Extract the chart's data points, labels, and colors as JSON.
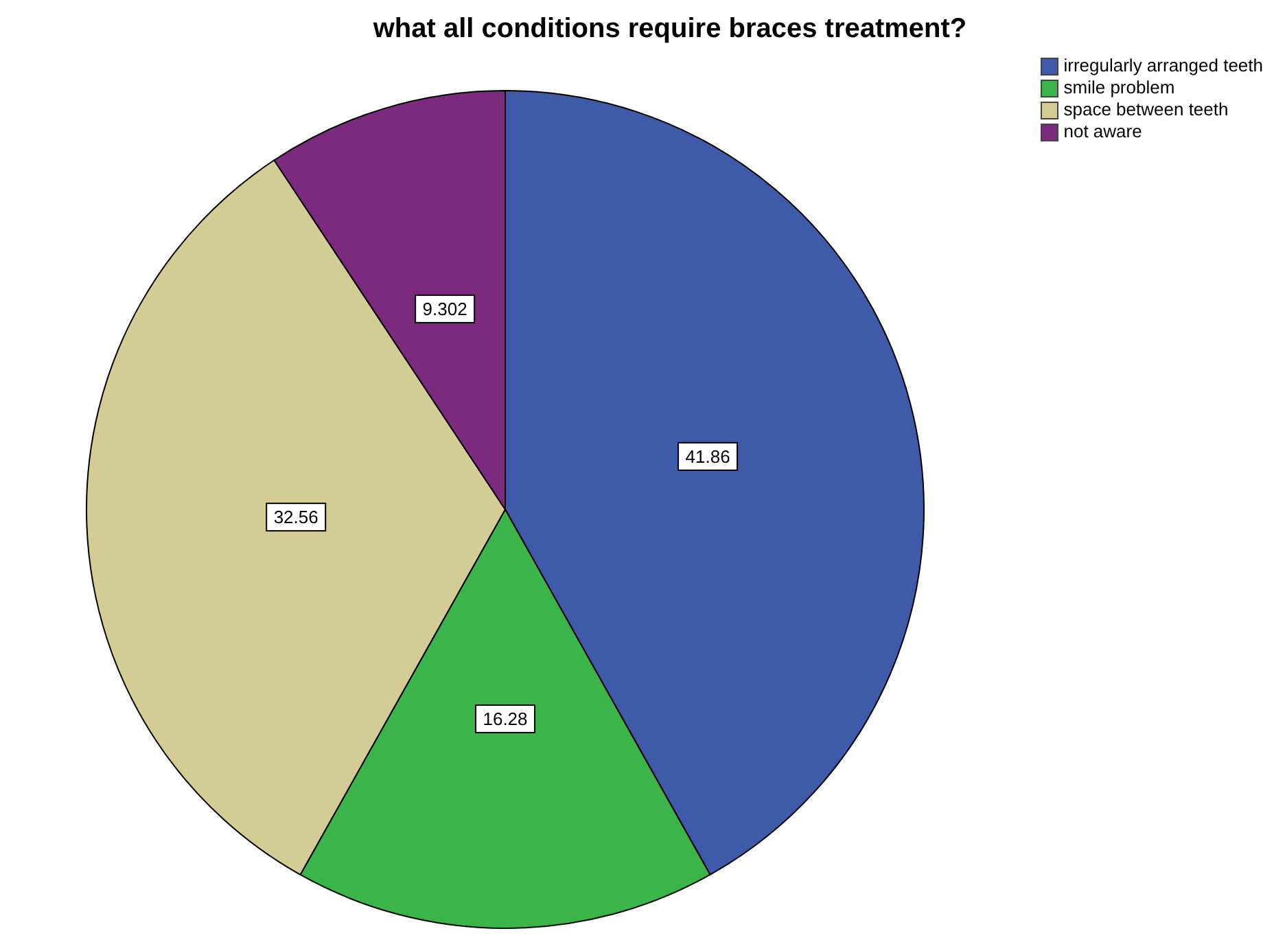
{
  "chart_data": {
    "type": "pie",
    "title": "what all conditions require braces treatment?",
    "categories": [
      "irregularly arranged teeth",
      "smile problem",
      "space between teeth",
      "not aware"
    ],
    "values": [
      41.86,
      16.28,
      32.56,
      9.302
    ],
    "colors": [
      "#3f5aa8",
      "#3bb54a",
      "#d3cd95",
      "#7b2a7e"
    ],
    "data_labels": true,
    "legend": "top right"
  }
}
